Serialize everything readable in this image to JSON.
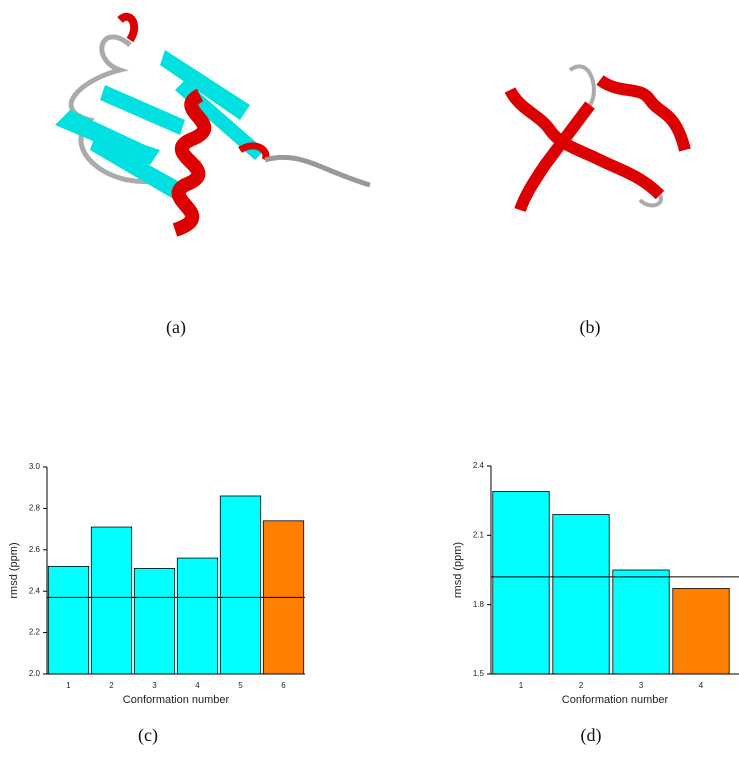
{
  "panel_labels": [
    "(a)",
    "(b)",
    "(c)",
    "(d)"
  ],
  "chart_data": [
    {
      "type": "bar",
      "x_label": "Conformation number",
      "y_label": "rmsd (ppm)",
      "categories": [
        "1",
        "2",
        "3",
        "4",
        "5",
        "6"
      ],
      "values": [
        2.52,
        2.71,
        2.51,
        2.56,
        2.86,
        2.74
      ],
      "colors": [
        "#00ffff",
        "#00ffff",
        "#00ffff",
        "#00ffff",
        "#00ffff",
        "#ff8000"
      ],
      "reference_line": 2.37,
      "ylim": [
        2.0,
        3.0
      ],
      "yticks": [
        {
          "value": 2.0,
          "label": "2.0"
        },
        {
          "value": 2.2,
          "label": "2.2"
        },
        {
          "value": 2.4,
          "label": "2.4"
        },
        {
          "value": 2.6,
          "label": "2.6"
        },
        {
          "value": 2.8,
          "label": "2.8"
        },
        {
          "value": 3.0,
          "label": "3.0"
        }
      ]
    },
    {
      "type": "bar",
      "x_label": "Conformation number",
      "y_label": "rmsd (ppm)",
      "categories": [
        "1",
        "2",
        "3",
        "4"
      ],
      "values": [
        2.29,
        2.19,
        1.95,
        1.87
      ],
      "colors": [
        "#00ffff",
        "#00ffff",
        "#00ffff",
        "#ff8000"
      ],
      "reference_line": 1.92,
      "ylim": [
        1.5,
        2.4
      ],
      "yticks": [
        {
          "value": 1.5,
          "label": "1.5"
        },
        {
          "value": 1.8,
          "label": "1.8"
        },
        {
          "value": 2.1,
          "label": "2.1"
        },
        {
          "value": 2.4,
          "label": "2.4"
        }
      ]
    }
  ]
}
